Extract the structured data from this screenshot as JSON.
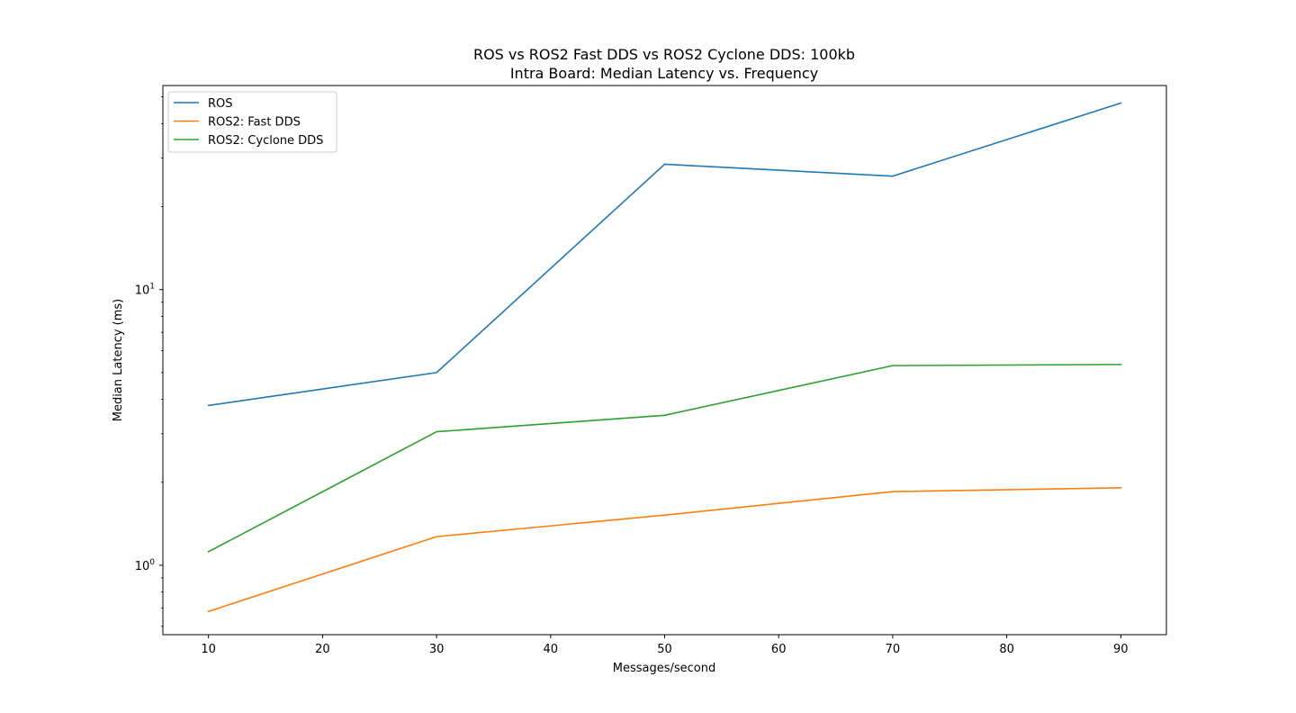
{
  "chart_data": {
    "type": "line",
    "title": "ROS vs ROS2 Fast DDS vs ROS2 Cyclone DDS: 100kb",
    "subtitle": "Intra Board: Median Latency vs. Frequency",
    "xlabel": "Messages/second",
    "ylabel": "Median Latency (ms)",
    "xscale": "linear",
    "yscale": "log",
    "xlim": [
      6,
      94
    ],
    "ylim": [
      0.56,
      55
    ],
    "x_ticks": [
      10,
      20,
      30,
      40,
      50,
      60,
      70,
      80,
      90
    ],
    "y_ticks": [
      {
        "value": 1,
        "base": "10",
        "exp": "0"
      },
      {
        "value": 10,
        "base": "10",
        "exp": "1"
      }
    ],
    "grid": false,
    "legend_position": "top-left",
    "x": [
      10,
      30,
      50,
      70,
      90
    ],
    "series": [
      {
        "name": "ROS",
        "color": "#1f77b4",
        "values": [
          3.8,
          5.0,
          28.5,
          25.8,
          47.5
        ]
      },
      {
        "name": "ROS2: Fast DDS",
        "color": "#ff7f0e",
        "values": [
          0.68,
          1.27,
          1.52,
          1.85,
          1.91
        ]
      },
      {
        "name": "ROS2: Cyclone DDS",
        "color": "#2ca02c",
        "values": [
          1.12,
          3.05,
          3.5,
          5.3,
          5.35
        ]
      }
    ]
  }
}
